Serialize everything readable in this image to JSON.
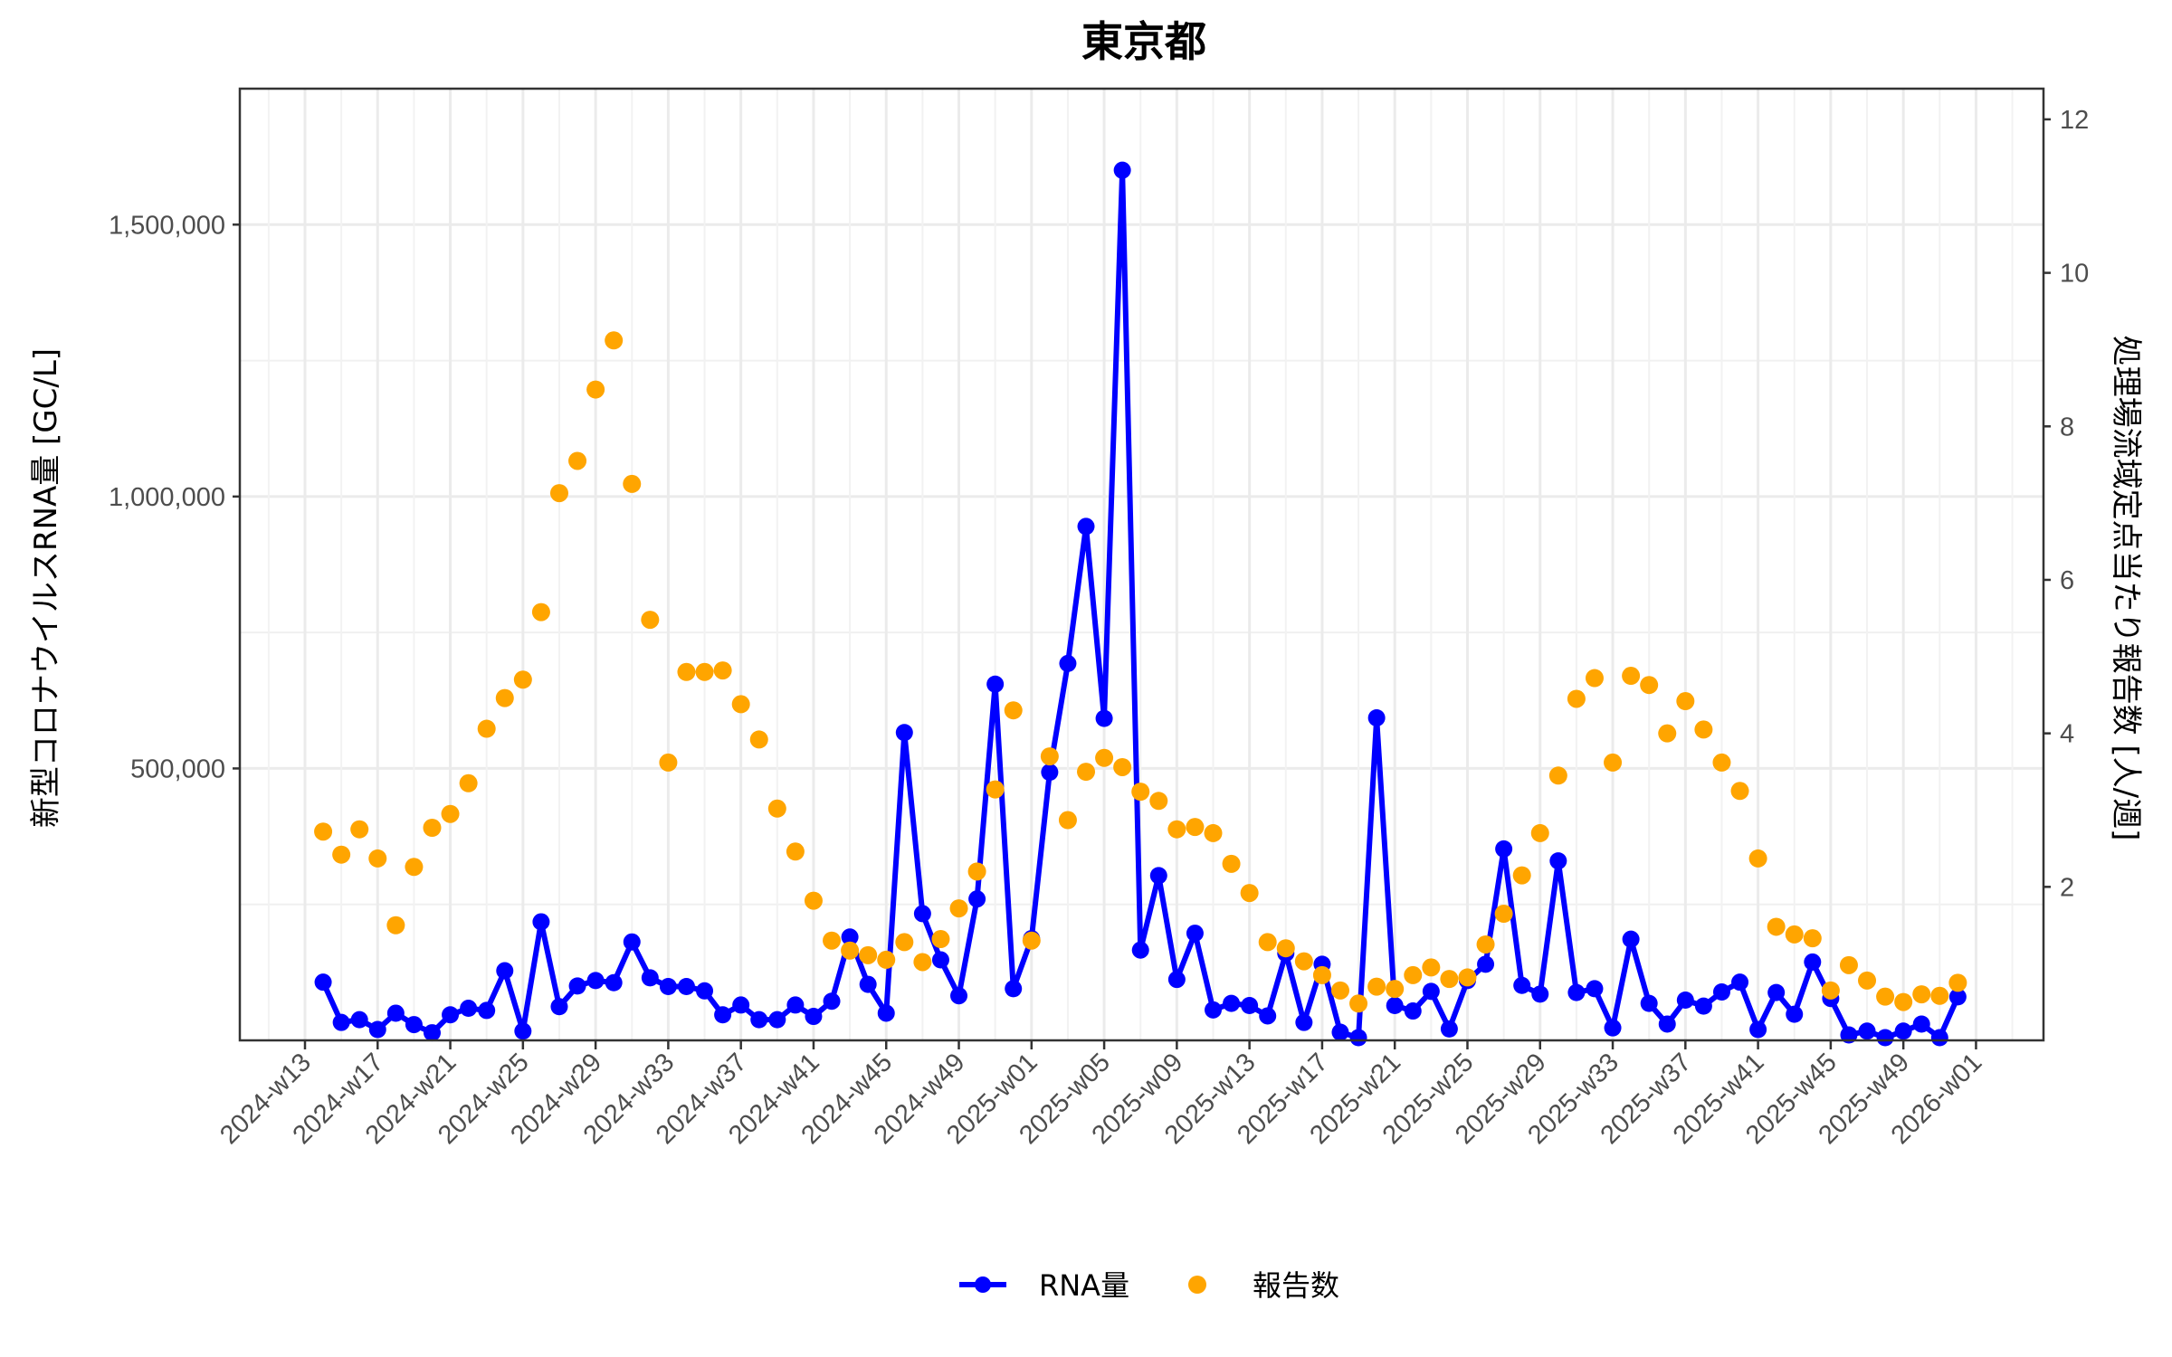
{
  "chart_data": {
    "type": "line",
    "title": "東京都",
    "xlabel": "",
    "ylabel": "新型コロナウイルスRNA量 [GC/L]",
    "y2label": "処理場流域定点当たり報告数 [人/週]",
    "ylim": [
      0,
      1750000
    ],
    "y2lim": [
      0,
      12.4
    ],
    "yticks": [
      500000,
      1000000,
      1500000
    ],
    "ytick_labels": [
      "500,000",
      "1,000,000",
      "1,500,000"
    ],
    "y2ticks": [
      2,
      4,
      6,
      8,
      10,
      12
    ],
    "y2tick_labels": [
      "2",
      "4",
      "6",
      "8",
      "10",
      "12"
    ],
    "xtick_labels": [
      "2024-w13",
      "2024-w17",
      "2024-w21",
      "2024-w25",
      "2024-w29",
      "2024-w33",
      "2024-w37",
      "2024-w41",
      "2024-w45",
      "2024-w49",
      "2025-w01",
      "2025-w05",
      "2025-w09",
      "2025-w13",
      "2025-w17",
      "2025-w21",
      "2025-w25",
      "2025-w29",
      "2025-w33",
      "2025-w37",
      "2025-w41",
      "2025-w45",
      "2025-w49",
      "2026-w01"
    ],
    "grid": true,
    "legend_position": "bottom",
    "legend": [
      {
        "label": "RNA量",
        "color": "#0000ff",
        "style": "line+point"
      },
      {
        "label": "報告数",
        "color": "#ffa500",
        "style": "point"
      }
    ],
    "x": [
      "2024-w14",
      "2024-w15",
      "2024-w16",
      "2024-w17",
      "2024-w18",
      "2024-w19",
      "2024-w20",
      "2024-w21",
      "2024-w22",
      "2024-w23",
      "2024-w24",
      "2024-w25",
      "2024-w26",
      "2024-w27",
      "2024-w28",
      "2024-w29",
      "2024-w30",
      "2024-w31",
      "2024-w32",
      "2024-w33",
      "2024-w34",
      "2024-w35",
      "2024-w36",
      "2024-w37",
      "2024-w38",
      "2024-w39",
      "2024-w40",
      "2024-w41",
      "2024-w42",
      "2024-w43",
      "2024-w44",
      "2024-w45",
      "2024-w46",
      "2024-w47",
      "2024-w48",
      "2024-w49",
      "2024-w50",
      "2024-w51",
      "2024-w52",
      "2025-w01",
      "2025-w02",
      "2025-w03",
      "2025-w04",
      "2025-w05",
      "2025-w06",
      "2025-w07",
      "2025-w08",
      "2025-w09",
      "2025-w10",
      "2025-w11",
      "2025-w12",
      "2025-w13",
      "2025-w14",
      "2025-w15",
      "2025-w16",
      "2025-w17",
      "2025-w18",
      "2025-w19",
      "2025-w20",
      "2025-w21",
      "2025-w22",
      "2025-w23",
      "2025-w24",
      "2025-w25",
      "2025-w26",
      "2025-w27",
      "2025-w28",
      "2025-w29",
      "2025-w30",
      "2025-w31",
      "2025-w32",
      "2025-w33",
      "2025-w34",
      "2025-w35",
      "2025-w36",
      "2025-w37",
      "2025-w38",
      "2025-w39",
      "2025-w40",
      "2025-w41",
      "2025-w42",
      "2025-w43",
      "2025-w44",
      "2025-w45",
      "2025-w46",
      "2025-w47",
      "2025-w48",
      "2025-w49",
      "2025-w50",
      "2025-w51",
      "2025-w52"
    ],
    "series": [
      {
        "name": "RNA量",
        "axis": "left",
        "color": "#0000ff",
        "values": [
          107000,
          33000,
          38000,
          20000,
          50000,
          29000,
          14000,
          47000,
          59000,
          55000,
          128000,
          17000,
          218000,
          62000,
          100000,
          110000,
          106000,
          181000,
          115000,
          99000,
          99000,
          91000,
          47000,
          65000,
          38000,
          38000,
          65000,
          44000,
          72000,
          190000,
          103000,
          50000,
          566000,
          233000,
          148000,
          82000,
          260000,
          655000,
          95000,
          187000,
          493000,
          693000,
          945000,
          592000,
          1600000,
          166000,
          303000,
          112000,
          197000,
          56000,
          68000,
          64000,
          45000,
          160000,
          33000,
          140000,
          15000,
          5000,
          593000,
          64000,
          54000,
          90000,
          21000,
          110000,
          140000,
          352000,
          101000,
          85000,
          330000,
          88000,
          95000,
          23000,
          186000,
          68000,
          30000,
          74000,
          63000,
          89000,
          107000,
          20000,
          88000,
          48000,
          144000,
          77000,
          10000,
          17000,
          5000,
          17000,
          30000,
          5000,
          80000
        ]
      },
      {
        "name": "報告数",
        "axis": "right",
        "color": "#ffa500",
        "values": [
          2.72,
          2.42,
          2.75,
          2.37,
          1.5,
          2.26,
          2.77,
          2.95,
          3.35,
          4.06,
          4.46,
          4.7,
          5.58,
          7.13,
          7.55,
          8.48,
          9.12,
          7.25,
          5.48,
          3.62,
          4.8,
          4.8,
          4.82,
          4.38,
          3.92,
          3.02,
          2.46,
          1.82,
          1.3,
          1.17,
          1.11,
          1.05,
          1.28,
          1.02,
          1.32,
          1.72,
          2.2,
          3.27,
          4.3,
          1.3,
          3.7,
          2.87,
          3.5,
          3.68,
          3.56,
          3.24,
          3.12,
          2.75,
          2.78,
          2.7,
          2.3,
          1.92,
          1.28,
          1.2,
          1.03,
          0.85,
          0.65,
          0.48,
          0.7,
          0.67,
          0.85,
          0.95,
          0.8,
          0.82,
          1.25,
          1.65,
          2.15,
          2.7,
          3.45,
          4.45,
          4.72,
          3.62,
          4.75,
          4.63,
          4.0,
          4.42,
          4.05,
          3.62,
          3.25,
          2.37,
          1.48,
          1.38,
          1.33,
          0.65,
          0.98,
          0.78,
          0.57,
          0.5,
          0.6,
          0.58,
          0.75
        ]
      }
    ]
  }
}
